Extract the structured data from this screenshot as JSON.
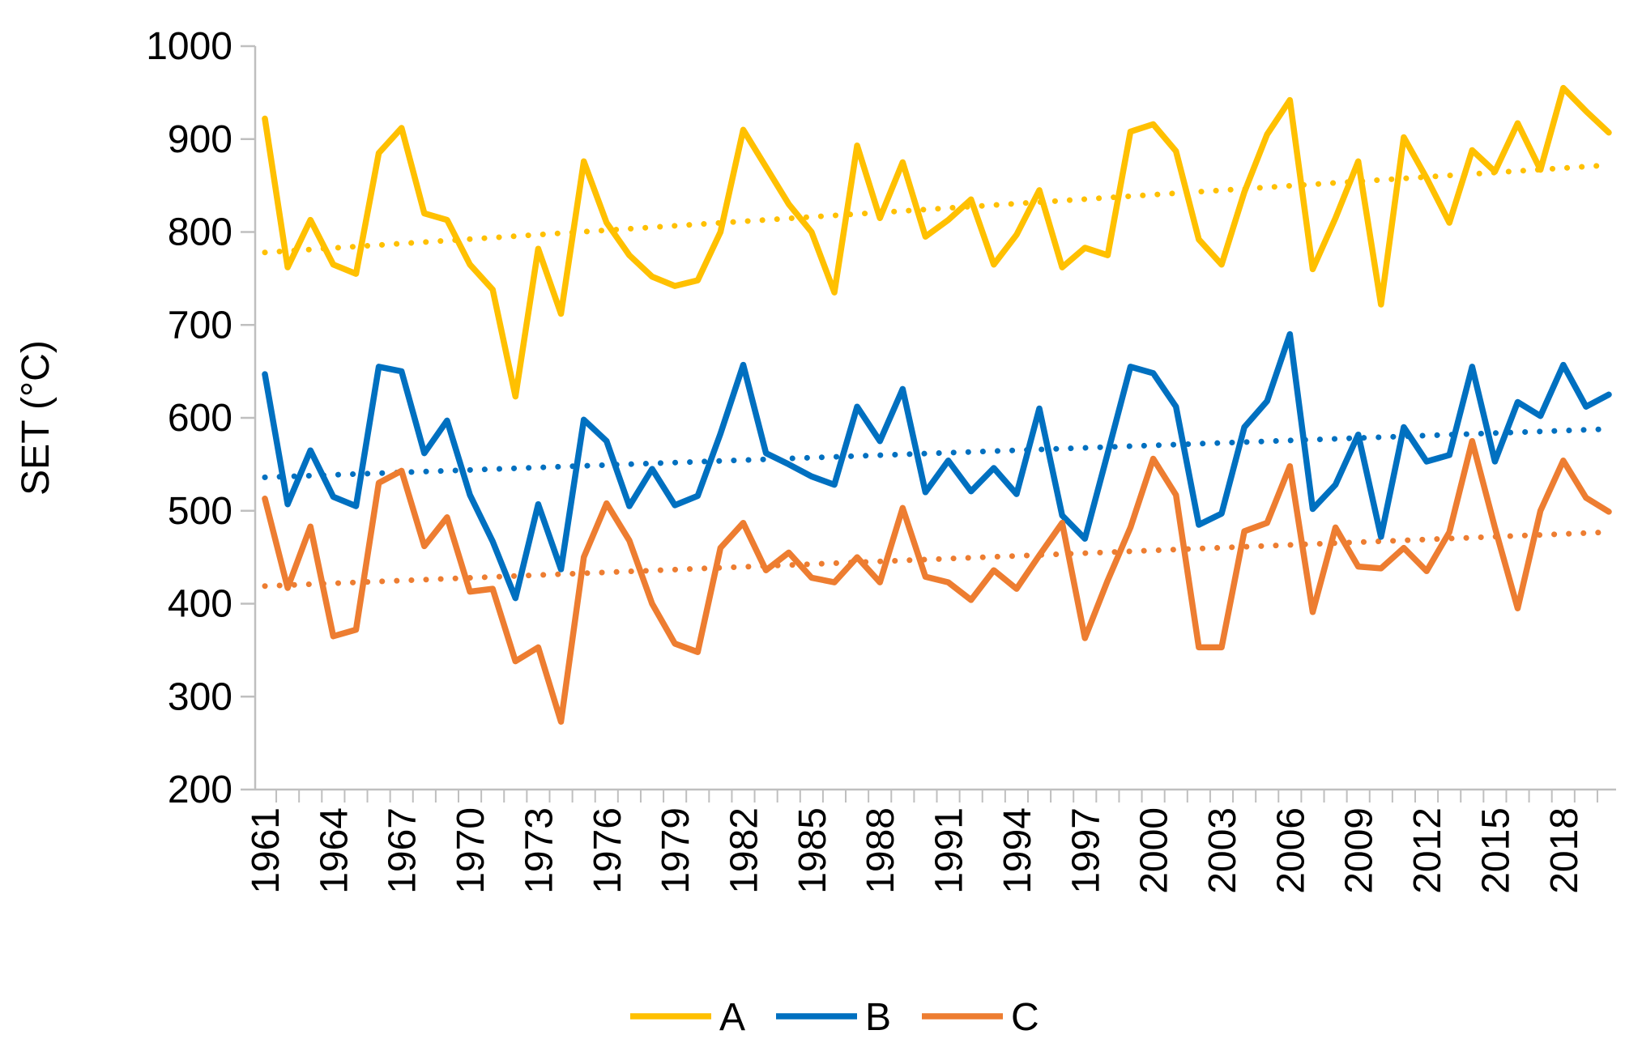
{
  "chart_data": {
    "type": "line",
    "title": "",
    "xlabel": "",
    "ylabel": "SET (°C)",
    "ylim": [
      200,
      1000
    ],
    "yticks": [
      200,
      300,
      400,
      500,
      600,
      700,
      800,
      900,
      1000
    ],
    "xtick_labels": [
      "1961",
      "1964",
      "1967",
      "1970",
      "1973",
      "1976",
      "1979",
      "1982",
      "1985",
      "1988",
      "1991",
      "1994",
      "1997",
      "2000",
      "2003",
      "2006",
      "2009",
      "2012",
      "2015",
      "2018"
    ],
    "x": [
      1961,
      1962,
      1963,
      1964,
      1965,
      1966,
      1967,
      1968,
      1969,
      1970,
      1971,
      1972,
      1973,
      1974,
      1975,
      1976,
      1977,
      1978,
      1979,
      1980,
      1981,
      1982,
      1983,
      1984,
      1985,
      1986,
      1987,
      1988,
      1989,
      1990,
      1991,
      1992,
      1993,
      1994,
      1995,
      1996,
      1997,
      1998,
      1999,
      2000,
      2001,
      2002,
      2003,
      2004,
      2005,
      2006,
      2007,
      2008,
      2009,
      2010,
      2011,
      2012,
      2013,
      2014,
      2015,
      2016,
      2017,
      2018,
      2019,
      2020
    ],
    "legend_position": "bottom",
    "series": [
      {
        "name": "A",
        "color": "#FFC000",
        "values": [
          922,
          762,
          813,
          765,
          755,
          885,
          912,
          820,
          813,
          765,
          738,
          623,
          782,
          712,
          876,
          810,
          775,
          752,
          742,
          748,
          800,
          910,
          870,
          830,
          800,
          735,
          893,
          815,
          875,
          795,
          813,
          835,
          765,
          797,
          845,
          762,
          783,
          775,
          908,
          916,
          887,
          792,
          765,
          843,
          905,
          942,
          760,
          815,
          876,
          722,
          902,
          858,
          810,
          888,
          865,
          917,
          867,
          955,
          930,
          907
        ],
        "trend": [
          778,
          872
        ]
      },
      {
        "name": "B",
        "color": "#0070C0",
        "values": [
          647,
          507,
          565,
          515,
          505,
          655,
          650,
          562,
          597,
          517,
          467,
          406,
          507,
          437,
          598,
          575,
          505,
          545,
          506,
          516,
          583,
          657,
          562,
          550,
          537,
          528,
          612,
          575,
          631,
          520,
          554,
          521,
          546,
          518,
          610,
          495,
          470,
          562,
          655,
          648,
          612,
          485,
          497,
          590,
          618,
          690,
          502,
          528,
          582,
          472,
          590,
          553,
          560,
          655,
          553,
          617,
          602,
          657,
          612,
          625
        ],
        "trend": [
          536,
          588
        ]
      },
      {
        "name": "C",
        "color": "#ED7D31",
        "values": [
          513,
          417,
          483,
          365,
          372,
          530,
          543,
          462,
          493,
          413,
          416,
          338,
          353,
          273,
          450,
          508,
          468,
          400,
          357,
          348,
          460,
          487,
          436,
          455,
          428,
          423,
          450,
          423,
          503,
          429,
          423,
          404,
          436,
          416,
          452,
          487,
          363,
          425,
          482,
          556,
          517,
          353,
          353,
          478,
          487,
          548,
          391,
          482,
          440,
          438,
          460,
          435,
          477,
          575,
          482,
          395,
          500,
          554,
          514,
          499
        ],
        "trend": [
          419,
          477
        ]
      }
    ]
  }
}
